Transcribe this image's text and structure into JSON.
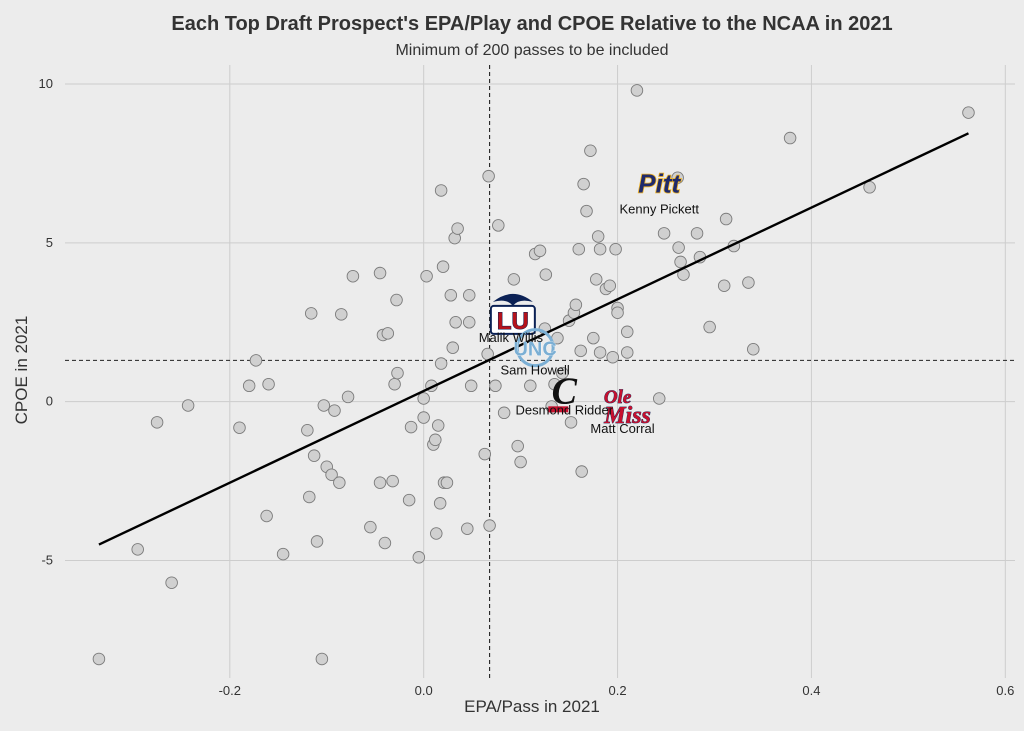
{
  "chart_data": {
    "type": "scatter",
    "title": "Each Top Draft Prospect's EPA/Play and CPOE Relative to the NCAA in 2021",
    "subtitle": "Minimum of 200 passes to be included",
    "xlabel": "EPA/Pass in 2021",
    "ylabel": "CPOE in 2021",
    "xlim": [
      -0.37,
      0.61
    ],
    "ylim": [
      -8.7,
      10.6
    ],
    "xticks": [
      -0.2,
      0.0,
      0.2,
      0.4,
      0.6
    ],
    "xtick_labels": [
      "-0.2",
      "0.0",
      "0.2",
      "0.4",
      "0.6"
    ],
    "yticks": [
      -5,
      0,
      5,
      10
    ],
    "ytick_labels": [
      "-5",
      "0",
      "5",
      "10"
    ],
    "grid": true,
    "reference_lines": {
      "x_mean": 0.068,
      "y_mean": 1.3
    },
    "fit_line": {
      "x": [
        -0.335,
        0.562
      ],
      "y": [
        -4.5,
        8.45
      ]
    },
    "points": [
      [
        -0.335,
        -8.1
      ],
      [
        -0.295,
        -4.65
      ],
      [
        -0.275,
        -0.65
      ],
      [
        -0.26,
        -5.7
      ],
      [
        -0.243,
        -0.12
      ],
      [
        -0.19,
        -0.82
      ],
      [
        -0.18,
        0.5
      ],
      [
        -0.173,
        1.3
      ],
      [
        -0.16,
        0.55
      ],
      [
        -0.162,
        -3.6
      ],
      [
        -0.145,
        -4.8
      ],
      [
        -0.12,
        -0.9
      ],
      [
        -0.118,
        -3.0
      ],
      [
        -0.116,
        2.78
      ],
      [
        -0.113,
        -1.7
      ],
      [
        -0.11,
        -4.4
      ],
      [
        -0.105,
        -8.1
      ],
      [
        -0.103,
        -0.12
      ],
      [
        -0.1,
        -2.05
      ],
      [
        -0.095,
        -2.3
      ],
      [
        -0.092,
        -0.28
      ],
      [
        -0.087,
        -2.55
      ],
      [
        -0.085,
        2.75
      ],
      [
        -0.078,
        0.15
      ],
      [
        -0.073,
        3.95
      ],
      [
        -0.055,
        -3.95
      ],
      [
        -0.045,
        4.05
      ],
      [
        -0.045,
        -2.55
      ],
      [
        -0.042,
        2.1
      ],
      [
        -0.04,
        -4.45
      ],
      [
        -0.037,
        2.15
      ],
      [
        -0.032,
        -2.5
      ],
      [
        -0.03,
        0.55
      ],
      [
        -0.028,
        3.2
      ],
      [
        -0.027,
        0.9
      ],
      [
        -0.015,
        -3.1
      ],
      [
        -0.013,
        -0.8
      ],
      [
        -0.005,
        -4.9
      ],
      [
        0.0,
        -0.5
      ],
      [
        0.0,
        0.1
      ],
      [
        0.003,
        3.95
      ],
      [
        0.008,
        0.5
      ],
      [
        0.01,
        -1.35
      ],
      [
        0.012,
        -1.2
      ],
      [
        0.013,
        -4.15
      ],
      [
        0.015,
        -0.75
      ],
      [
        0.017,
        -3.2
      ],
      [
        0.018,
        6.65
      ],
      [
        0.018,
        1.2
      ],
      [
        0.02,
        4.25
      ],
      [
        0.021,
        -2.55
      ],
      [
        0.024,
        -2.55
      ],
      [
        0.028,
        3.35
      ],
      [
        0.03,
        1.7
      ],
      [
        0.032,
        5.15
      ],
      [
        0.033,
        2.5
      ],
      [
        0.035,
        5.45
      ],
      [
        0.045,
        -4.0
      ],
      [
        0.047,
        3.35
      ],
      [
        0.047,
        2.5
      ],
      [
        0.049,
        0.5
      ],
      [
        0.063,
        -1.65
      ],
      [
        0.066,
        1.5
      ],
      [
        0.067,
        7.1
      ],
      [
        0.068,
        -3.9
      ],
      [
        0.074,
        0.5
      ],
      [
        0.077,
        5.55
      ],
      [
        0.083,
        -0.35
      ],
      [
        0.093,
        3.85
      ],
      [
        0.097,
        -1.4
      ],
      [
        0.1,
        -1.9
      ],
      [
        0.11,
        0.5
      ],
      [
        0.115,
        4.65
      ],
      [
        0.12,
        4.75
      ],
      [
        0.125,
        2.3
      ],
      [
        0.126,
        4.0
      ],
      [
        0.132,
        -0.15
      ],
      [
        0.135,
        0.55
      ],
      [
        0.138,
        2.0
      ],
      [
        0.143,
        0.9
      ],
      [
        0.15,
        2.55
      ],
      [
        0.152,
        -0.65
      ],
      [
        0.155,
        2.8
      ],
      [
        0.157,
        3.05
      ],
      [
        0.16,
        4.8
      ],
      [
        0.162,
        1.6
      ],
      [
        0.163,
        -2.2
      ],
      [
        0.165,
        6.85
      ],
      [
        0.168,
        6.0
      ],
      [
        0.172,
        7.9
      ],
      [
        0.175,
        2.0
      ],
      [
        0.178,
        3.85
      ],
      [
        0.18,
        5.2
      ],
      [
        0.182,
        4.8
      ],
      [
        0.182,
        1.55
      ],
      [
        0.188,
        3.55
      ],
      [
        0.192,
        3.65
      ],
      [
        0.195,
        1.4
      ],
      [
        0.198,
        4.8
      ],
      [
        0.2,
        2.95
      ],
      [
        0.2,
        2.8
      ],
      [
        0.21,
        1.55
      ],
      [
        0.21,
        2.2
      ],
      [
        0.22,
        9.8
      ],
      [
        0.243,
        0.1
      ],
      [
        0.248,
        5.3
      ],
      [
        0.262,
        7.05
      ],
      [
        0.263,
        4.85
      ],
      [
        0.265,
        4.4
      ],
      [
        0.268,
        4.0
      ],
      [
        0.282,
        5.3
      ],
      [
        0.285,
        4.55
      ],
      [
        0.295,
        2.35
      ],
      [
        0.31,
        3.65
      ],
      [
        0.312,
        5.75
      ],
      [
        0.32,
        4.9
      ],
      [
        0.335,
        3.75
      ],
      [
        0.34,
        1.65
      ],
      [
        0.378,
        8.3
      ],
      [
        0.46,
        6.75
      ],
      [
        0.562,
        9.1
      ]
    ],
    "annotations": [
      {
        "label": "Kenny Pickett",
        "logo": "Pitt",
        "x": 0.243,
        "y": 6.9
      },
      {
        "label": "Malik Willis",
        "logo": "LU",
        "x": 0.092,
        "y": 2.7
      },
      {
        "label": "Sam Howell",
        "logo": "UNC",
        "x": 0.115,
        "y": 1.7
      },
      {
        "label": "Desmond Ridder",
        "logo": "C",
        "x": 0.143,
        "y": 0.2
      },
      {
        "label": "Matt Corral",
        "logo": "Ole Miss",
        "x": 0.2,
        "y": -0.1
      }
    ],
    "colors": {
      "background": "#ececec",
      "point_fill": "#d0d0d0",
      "point_stroke": "#7a7a7a",
      "fit_line": "#000000",
      "pitt_blue": "#1f2a6b",
      "pitt_gold": "#f0b323",
      "liberty_red": "#b5121b",
      "liberty_navy": "#0b2155",
      "unc_blue": "#7bafd4",
      "cincy_red": "#c8102e",
      "olemiss_red": "#c8102e"
    }
  }
}
